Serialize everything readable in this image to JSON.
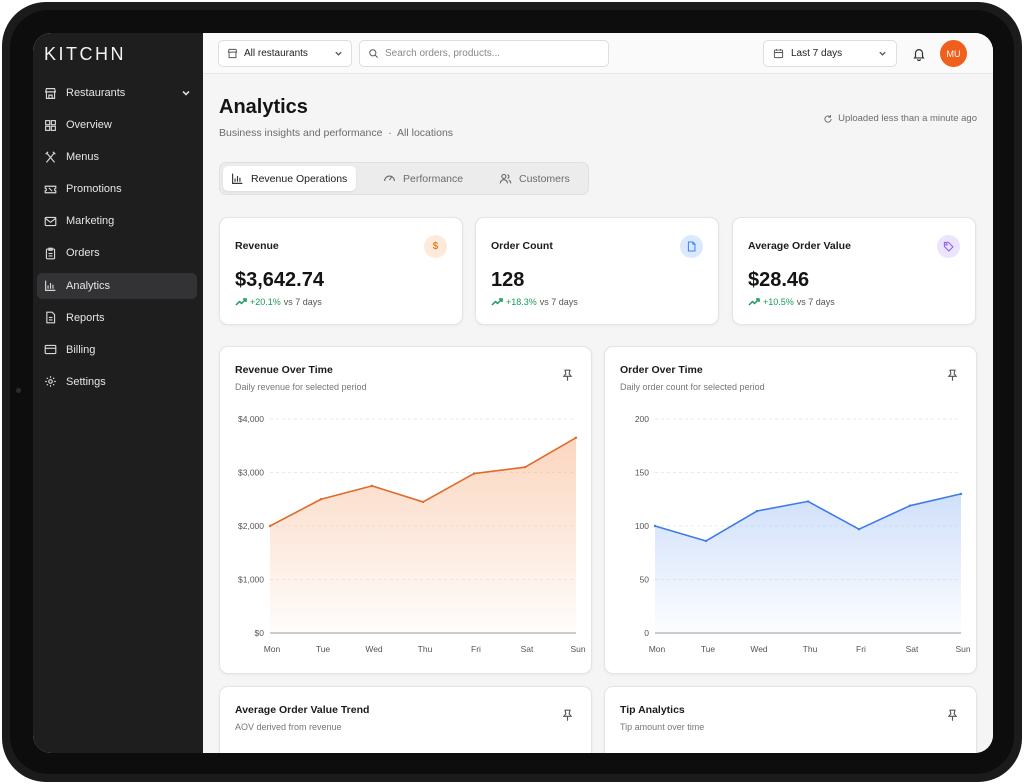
{
  "app": {
    "logo": "KITCHN"
  },
  "sidebar": {
    "items": [
      {
        "label": "Restaurants",
        "icon": "store-icon"
      },
      {
        "label": "Overview",
        "icon": "grid-icon"
      },
      {
        "label": "Menus",
        "icon": "utensils-icon"
      },
      {
        "label": "Promotions",
        "icon": "ticket-icon"
      },
      {
        "label": "Marketing",
        "icon": "mail-icon"
      },
      {
        "label": "Orders",
        "icon": "clipboard-icon"
      },
      {
        "label": "Analytics",
        "icon": "bar-chart-icon"
      },
      {
        "label": "Reports",
        "icon": "file-icon"
      },
      {
        "label": "Billing",
        "icon": "credit-card-icon"
      },
      {
        "label": "Settings",
        "icon": "gear-icon"
      }
    ],
    "active": "Analytics"
  },
  "topbar": {
    "restaurant_select": "All restaurants",
    "search_placeholder": "Search orders, products...",
    "date_range": "Last 7 days",
    "avatar_initials": "MU"
  },
  "header": {
    "title": "Analytics",
    "subtitle": "Business insights and performance",
    "location": "All locations",
    "uploaded": "Uploaded less than a minute ago"
  },
  "tabs": [
    {
      "label": "Revenue Operations",
      "icon": "bar-chart-icon"
    },
    {
      "label": "Performance",
      "icon": "gauge-icon"
    },
    {
      "label": "Customers",
      "icon": "users-icon"
    }
  ],
  "kpis": [
    {
      "label": "Revenue",
      "value": "$3,642.74",
      "delta": "+20.1%",
      "compare": "vs 7 days",
      "icon": "dollar-icon",
      "color": "#f07a2a",
      "bg": "#fdeadb"
    },
    {
      "label": "Order Count",
      "value": "128",
      "delta": "+18.3%",
      "compare": "vs 7 days",
      "icon": "document-icon",
      "color": "#3b82f6",
      "bg": "#dbe9fd"
    },
    {
      "label": "Average Order Value",
      "value": "$28.46",
      "delta": "+10.5%",
      "compare": "vs 7 days",
      "icon": "tag-icon",
      "color": "#8b5cf6",
      "bg": "#ece3fd"
    }
  ],
  "cards": {
    "revenue": {
      "title": "Revenue Over Time",
      "subtitle": "Daily revenue for selected period"
    },
    "orders": {
      "title": "Order Over Time",
      "subtitle": "Daily order count for selected period"
    },
    "aov": {
      "title": "Average Order Value Trend",
      "subtitle": "AOV derived from revenue"
    },
    "tips": {
      "title": "Tip Analytics",
      "subtitle": "Tip amount over time"
    }
  },
  "chart_data": [
    {
      "type": "area",
      "title": "Revenue Over Time",
      "categories": [
        "Mon",
        "Tue",
        "Wed",
        "Thu",
        "Fri",
        "Sat",
        "Sun"
      ],
      "values": [
        2000,
        2500,
        2750,
        2450,
        2980,
        3100,
        3650
      ],
      "yticks": [
        "$0",
        "$1,000",
        "$2,000",
        "$3,000",
        "$4,000"
      ],
      "ylim": [
        0,
        4000
      ],
      "color": "#e06a2c",
      "fill": "#f7b48a",
      "grid": true
    },
    {
      "type": "area",
      "title": "Order Over Time",
      "categories": [
        "Mon",
        "Tue",
        "Wed",
        "Thu",
        "Fri",
        "Sat",
        "Sun"
      ],
      "values": [
        100,
        86,
        114,
        123,
        97,
        119,
        130
      ],
      "yticks": [
        "0",
        "50",
        "100",
        "150",
        "200"
      ],
      "ylim": [
        0,
        200
      ],
      "color": "#3f7be8",
      "fill": "#a9c6f6",
      "grid": true
    }
  ]
}
